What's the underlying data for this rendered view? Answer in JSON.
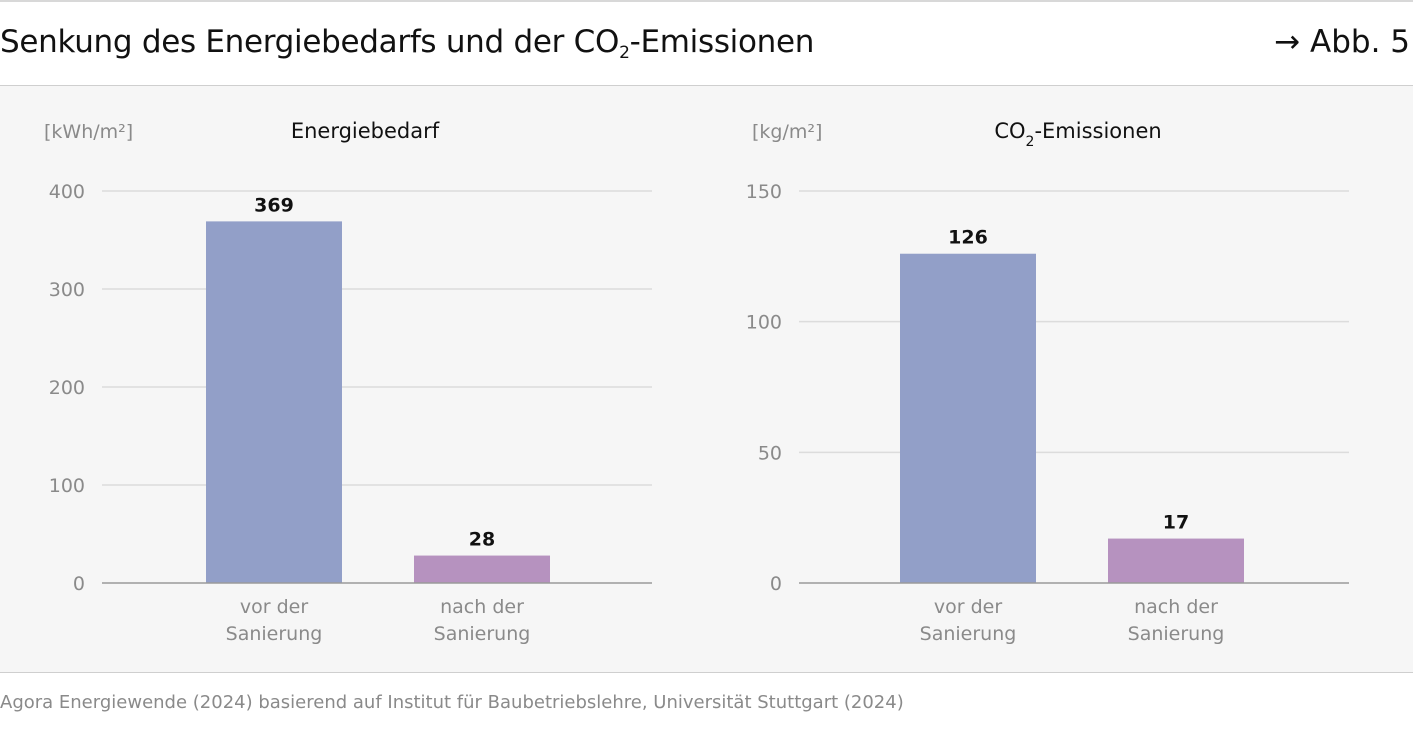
{
  "header": {
    "title_prefix": "Senkung des Energiebedarfs und der CO",
    "title_sub": "2",
    "title_suffix": "-Emissionen",
    "figure_ref": "→ Abb. 5"
  },
  "colors": {
    "bar_before": "#929fc8",
    "bar_after": "#b692bf",
    "grid": "#dcdcdc",
    "axis": "#9a9a9a",
    "panel_bg": "#f6f6f6"
  },
  "chart_data": [
    {
      "type": "bar",
      "title": "Energiebedarf",
      "title_sub": "",
      "title_suffix": "",
      "unit_label": "[kWh/m²]",
      "categories": [
        [
          "vor der",
          "Sanierung"
        ],
        [
          "nach der",
          "Sanierung"
        ]
      ],
      "values": [
        369,
        28
      ],
      "value_labels": [
        "369",
        "28"
      ],
      "yticks": [
        0,
        100,
        200,
        300,
        400
      ],
      "ylim": [
        0,
        400
      ],
      "grid": true
    },
    {
      "type": "bar",
      "title": "CO",
      "title_sub": "2",
      "title_suffix": "-Emissionen",
      "unit_label": "[kg/m²]",
      "categories": [
        [
          "vor der",
          "Sanierung"
        ],
        [
          "nach der",
          "Sanierung"
        ]
      ],
      "values": [
        126,
        17
      ],
      "value_labels": [
        "126",
        "17"
      ],
      "yticks": [
        0,
        50,
        100,
        150
      ],
      "ylim": [
        0,
        150
      ],
      "grid": true
    }
  ],
  "source": "Agora Energiewende (2024) basierend auf Institut für Baubetriebslehre, Universität Stuttgart (2024)"
}
